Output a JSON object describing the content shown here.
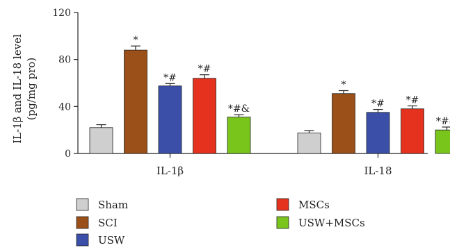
{
  "chart_data": {
    "type": "bar",
    "title": "",
    "categories": [
      "IL-1β",
      "IL-18"
    ],
    "ylabel_line1": "IL-1β and IL-18 level",
    "ylabel_line2": "(pg/mg pro)",
    "xlabel": "",
    "ylim": [
      0,
      120
    ],
    "yticks": [
      0,
      40,
      80,
      120
    ],
    "legend_position": "bottom",
    "series": [
      {
        "name": "Sham",
        "color": "#cfcfcf",
        "values": [
          22,
          17.5
        ],
        "errors": [
          2.5,
          2
        ],
        "annotations": [
          "",
          ""
        ]
      },
      {
        "name": "SCI",
        "color": "#9a5018",
        "values": [
          88,
          51
        ],
        "errors": [
          3.5,
          2.5
        ],
        "annotations": [
          "*",
          "*"
        ]
      },
      {
        "name": "USW",
        "color": "#3b4fa8",
        "values": [
          57.5,
          35
        ],
        "errors": [
          2,
          2.5
        ],
        "annotations": [
          "*#",
          "*#"
        ]
      },
      {
        "name": "MSCs",
        "color": "#e5321e",
        "values": [
          64,
          38
        ],
        "errors": [
          3,
          2.5
        ],
        "annotations": [
          "*#",
          "*#"
        ]
      },
      {
        "name": "USW+MSCs",
        "color": "#79c51c",
        "values": [
          31,
          20
        ],
        "errors": [
          2,
          2.5
        ],
        "annotations": [
          "*#&",
          "*#&"
        ]
      }
    ]
  }
}
